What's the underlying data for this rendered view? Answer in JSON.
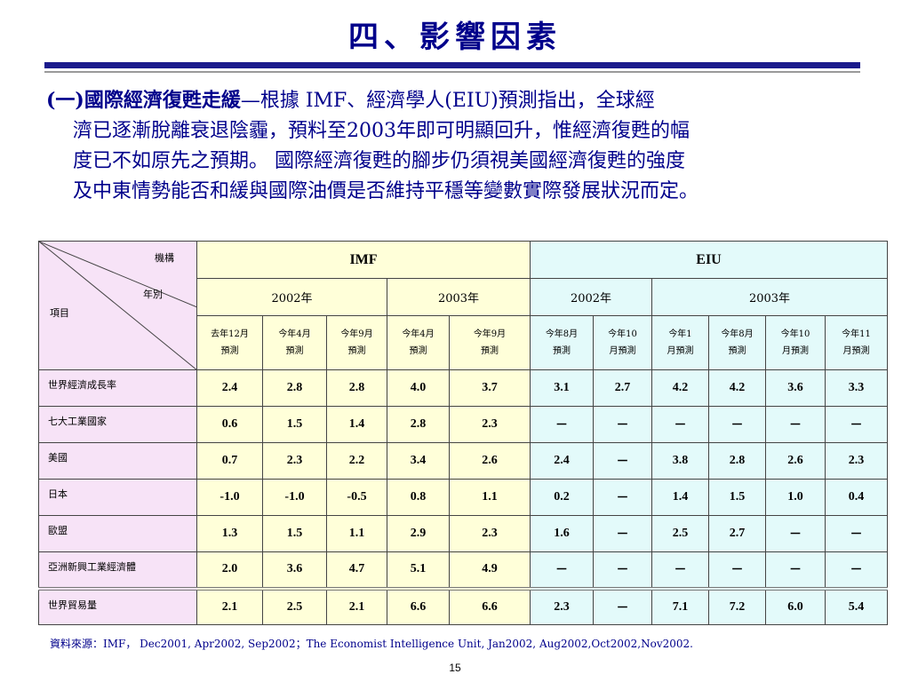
{
  "slide": {
    "title": "四、影響因素",
    "intro": {
      "lead": "(一)國際經濟復甦走緩",
      "lines": [
        "—根據 IMF、經濟學人(EIU)預測指出，全球經",
        "濟已逐漸脫離衰退陰霾，預料至2003年即可明顯回升，惟經濟復甦的幅",
        "度已不如原先之預期。 國際經濟復甦的腳步仍須視美國經濟復甦的強度",
        "及中東情勢能否和緩與國際油價是否維持平穩等變數實際發展狀況而定。"
      ]
    },
    "source": "資料來源：IMF， Dec2001, Apr2002, Sep2002；The Economist Intelligence Unit,  Jan2002, Aug2002,Oct2002,Nov2002.",
    "page_number": "15"
  },
  "colors": {
    "title": "#00008b",
    "imf_bg": "#ffffd9",
    "eiu_bg": "#e3fafa",
    "item_bg": "#f7e3f7"
  },
  "table": {
    "corner": {
      "org": "機構",
      "year": "年別",
      "item": "項目"
    },
    "orgs": [
      "IMF",
      "EIU"
    ],
    "years": [
      "2002年",
      "2003年",
      "2002年",
      "2003年"
    ],
    "sub_headers": [
      [
        "去年12月",
        "預測"
      ],
      [
        "今年4月",
        "預測"
      ],
      [
        "今年9月",
        "預測"
      ],
      [
        "今年4月",
        "預測"
      ],
      [
        "今年9月",
        "預測"
      ],
      [
        "今年8月",
        "預測"
      ],
      [
        "今年10",
        "月預測"
      ],
      [
        "今年1",
        "月預測"
      ],
      [
        "今年8月",
        "預測"
      ],
      [
        "今年10",
        "月預測"
      ],
      [
        "今年11",
        "月預測"
      ]
    ],
    "rows": [
      {
        "label": "世界經濟成長率",
        "values": [
          "2.4",
          "2.8",
          "2.8",
          "4.0",
          "3.7",
          "3.1",
          "2.7",
          "4.2",
          "4.2",
          "3.6",
          "3.3"
        ]
      },
      {
        "label": "七大工業國家",
        "values": [
          "0.6",
          "1.5",
          "1.4",
          "2.8",
          "2.3",
          "－",
          "－",
          "－",
          "－",
          "－",
          "－"
        ]
      },
      {
        "label": "美國",
        "values": [
          "0.7",
          "2.3",
          "2.2",
          "3.4",
          "2.6",
          "2.4",
          "－",
          "3.8",
          "2.8",
          "2.6",
          "2.3"
        ]
      },
      {
        "label": "日本",
        "values": [
          "-1.0",
          "-1.0",
          "-0.5",
          "0.8",
          "1.1",
          "0.2",
          "－",
          "1.4",
          "1.5",
          "1.0",
          "0.4"
        ]
      },
      {
        "label": "歐盟",
        "values": [
          "1.3",
          "1.5",
          "1.1",
          "2.9",
          "2.3",
          "1.6",
          "－",
          "2.5",
          "2.7",
          "－",
          "－"
        ]
      },
      {
        "label": "亞洲新興工業經濟體",
        "values": [
          "2.0",
          "3.6",
          "4.7",
          "5.1",
          "4.9",
          "－",
          "－",
          "－",
          "－",
          "－",
          "－"
        ]
      },
      {
        "label": "世界貿易量",
        "values": [
          "2.1",
          "2.5",
          "2.1",
          "6.6",
          "6.6",
          "2.3",
          "－",
          "7.1",
          "7.2",
          "6.0",
          "5.4"
        ]
      }
    ]
  }
}
